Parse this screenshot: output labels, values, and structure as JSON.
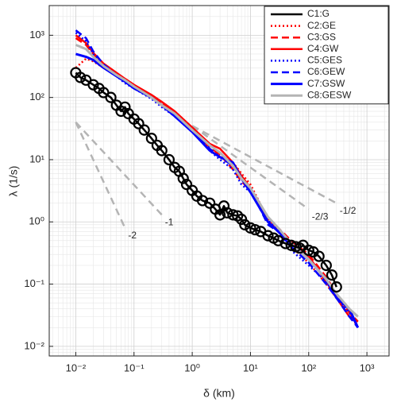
{
  "chart_data": {
    "type": "line",
    "x_label": "δ (km)",
    "y_label": "λ (1/s)",
    "log_x": true,
    "log_y": true,
    "grid": true,
    "legend": "upper right",
    "xlim": [
      0.0035,
      2400
    ],
    "ylim": [
      0.007,
      3000
    ],
    "xticks": [
      {
        "value": 0.01,
        "label": "10⁻²"
      },
      {
        "value": 0.1,
        "label": "10⁻¹"
      },
      {
        "value": 1,
        "label": "10⁰"
      },
      {
        "value": 10,
        "label": "10¹"
      },
      {
        "value": 100,
        "label": "10²"
      },
      {
        "value": 1000,
        "label": "10³"
      }
    ],
    "yticks": [
      {
        "value": 0.01,
        "label": "10⁻²"
      },
      {
        "value": 0.1,
        "label": "10⁻¹"
      },
      {
        "value": 1,
        "label": "10⁰"
      },
      {
        "value": 10,
        "label": "10¹"
      },
      {
        "value": 100,
        "label": "10²"
      },
      {
        "value": 1000,
        "label": "10³"
      }
    ],
    "series": [
      {
        "name": "C1:G",
        "color": "#000000",
        "dash": "solid",
        "width": 2.5,
        "marker": "circle",
        "x": [
          0.01,
          0.012,
          0.015,
          0.02,
          0.025,
          0.03,
          0.04,
          0.05,
          0.06,
          0.07,
          0.08,
          0.1,
          0.12,
          0.15,
          0.2,
          0.25,
          0.3,
          0.4,
          0.5,
          0.6,
          0.7,
          0.8,
          1,
          1.2,
          1.5,
          2,
          2.5,
          3,
          3.5,
          4,
          5,
          6,
          7,
          8,
          10,
          12,
          15,
          20,
          25,
          30,
          40,
          50,
          60,
          70,
          80,
          100,
          120,
          150,
          200,
          250,
          300
        ],
        "values": [
          250,
          210,
          190,
          160,
          140,
          120,
          100,
          75,
          60,
          70,
          55,
          45,
          38,
          30,
          22,
          17,
          14,
          10,
          7.5,
          6.5,
          5,
          4,
          3.2,
          2.6,
          2.2,
          2.0,
          1.6,
          1.3,
          1.8,
          1.4,
          1.3,
          1.25,
          1.1,
          0.9,
          0.8,
          0.75,
          0.7,
          0.6,
          0.55,
          0.5,
          0.45,
          0.42,
          0.4,
          0.38,
          0.42,
          0.35,
          0.33,
          0.28,
          0.2,
          0.14,
          0.09
        ]
      },
      {
        "name": "C2:GE",
        "color": "#ff0000",
        "dash": "dotted",
        "width": 2.5,
        "x": [
          0.01,
          0.015,
          0.02,
          0.03,
          0.05,
          0.07,
          0.1,
          0.2,
          0.3,
          0.5,
          1,
          2,
          3,
          5,
          7,
          10,
          20,
          30,
          50,
          100,
          200,
          300,
          500,
          700
        ],
        "values": [
          300,
          420,
          380,
          300,
          230,
          180,
          140,
          100,
          80,
          55,
          32,
          15,
          12,
          9,
          6,
          4,
          1.1,
          0.7,
          0.4,
          0.22,
          0.1,
          0.06,
          0.035,
          0.02
        ]
      },
      {
        "name": "C3:GS",
        "color": "#ff0000",
        "dash": "dashed",
        "width": 2.5,
        "x": [
          0.01,
          0.015,
          0.02,
          0.03,
          0.05,
          0.07,
          0.1,
          0.2,
          0.3,
          0.5,
          1,
          2,
          3,
          5,
          7,
          10,
          20,
          30,
          50,
          100,
          200,
          300,
          500,
          700
        ],
        "values": [
          900,
          700,
          500,
          330,
          240,
          190,
          150,
          105,
          80,
          55,
          30,
          16,
          12,
          7,
          4.5,
          3.2,
          1.0,
          0.8,
          0.5,
          0.3,
          0.13,
          0.07,
          0.035,
          0.025
        ]
      },
      {
        "name": "C4:GW",
        "color": "#ff0000",
        "dash": "solid",
        "width": 2.5,
        "x": [
          0.01,
          0.015,
          0.02,
          0.03,
          0.05,
          0.07,
          0.1,
          0.2,
          0.3,
          0.5,
          1,
          2,
          3,
          5,
          7,
          10,
          20,
          30,
          50,
          100,
          200,
          300,
          500,
          700
        ],
        "values": [
          1000,
          750,
          520,
          350,
          250,
          200,
          160,
          110,
          85,
          60,
          33,
          18,
          15,
          9,
          5.5,
          3.5,
          1.0,
          0.7,
          0.45,
          0.28,
          0.11,
          0.06,
          0.03,
          0.025
        ]
      },
      {
        "name": "C5:GES",
        "color": "#0000ff",
        "dash": "dotted",
        "width": 2.5,
        "x": [
          0.01,
          0.015,
          0.02,
          0.03,
          0.05,
          0.07,
          0.1,
          0.2,
          0.3,
          0.5,
          1,
          2,
          3,
          5,
          7,
          10,
          20,
          30,
          50,
          100,
          200,
          300,
          500,
          700
        ],
        "values": [
          1100,
          800,
          500,
          300,
          220,
          170,
          140,
          95,
          70,
          50,
          28,
          14,
          10,
          7,
          4,
          3.0,
          1.1,
          0.75,
          0.35,
          0.2,
          0.11,
          0.06,
          0.035,
          0.02
        ]
      },
      {
        "name": "C6:GEW",
        "color": "#0000ff",
        "dash": "dashed",
        "width": 2.5,
        "x": [
          0.01,
          0.015,
          0.02,
          0.03,
          0.05,
          0.07,
          0.1,
          0.2,
          0.3,
          0.5,
          1,
          2,
          3,
          5,
          7,
          10,
          20,
          30,
          50,
          100,
          200,
          300,
          500,
          700
        ],
        "values": [
          1200,
          900,
          550,
          340,
          230,
          180,
          140,
          100,
          75,
          50,
          30,
          15,
          11,
          8,
          5,
          3.3,
          0.9,
          0.7,
          0.4,
          0.22,
          0.1,
          0.06,
          0.03,
          0.02
        ]
      },
      {
        "name": "C7:GSW",
        "color": "#0000ff",
        "dash": "solid",
        "width": 3,
        "x": [
          0.01,
          0.015,
          0.02,
          0.03,
          0.05,
          0.07,
          0.1,
          0.2,
          0.3,
          0.5,
          1,
          2,
          3,
          5,
          7,
          10,
          20,
          30,
          50,
          100,
          200,
          300,
          500,
          700
        ],
        "values": [
          500,
          450,
          400,
          300,
          220,
          180,
          140,
          100,
          75,
          50,
          28,
          14,
          11,
          9,
          5,
          3.0,
          1.0,
          0.7,
          0.45,
          0.25,
          0.12,
          0.06,
          0.04,
          0.02
        ]
      },
      {
        "name": "C8:GESW",
        "color": "#b4b4b4",
        "dash": "solid",
        "width": 3,
        "x": [
          0.01,
          0.015,
          0.02,
          0.03,
          0.05,
          0.07,
          0.1,
          0.2,
          0.3,
          0.5,
          1,
          2,
          3,
          5,
          7,
          10,
          20,
          30,
          50,
          100,
          200,
          300,
          500,
          700
        ],
        "values": [
          700,
          600,
          450,
          320,
          230,
          190,
          150,
          100,
          75,
          55,
          30,
          17,
          13,
          8,
          5,
          3.5,
          1.2,
          0.8,
          0.45,
          0.25,
          0.12,
          0.07,
          0.04,
          0.03
        ]
      }
    ],
    "reference_lines": [
      {
        "label": "-1/2",
        "color": "#b4b4b4",
        "x": [
          1,
          300
        ],
        "values": [
          35,
          2.0
        ]
      },
      {
        "label": "-2/3",
        "color": "#b4b4b4",
        "x": [
          1,
          100
        ],
        "values": [
          35,
          1.6
        ]
      },
      {
        "label": "-1",
        "color": "#b4b4b4",
        "x": [
          0.01,
          0.3
        ],
        "values": [
          40,
          1.3
        ]
      },
      {
        "label": "-2",
        "color": "#b4b4b4",
        "x": [
          0.01,
          0.07
        ],
        "values": [
          40,
          0.8
        ]
      }
    ]
  }
}
